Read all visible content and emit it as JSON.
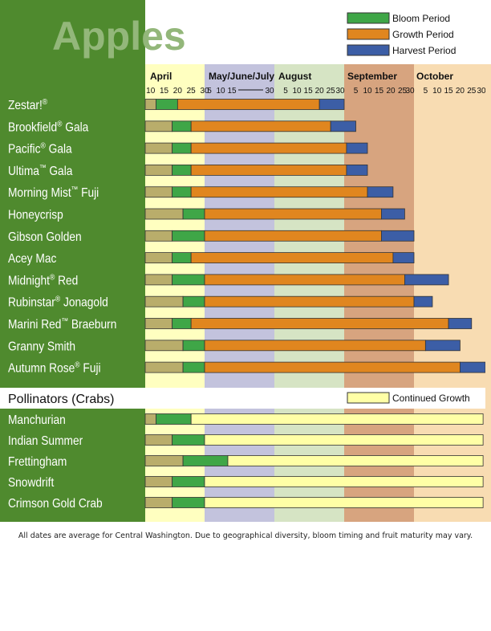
{
  "chart_data": {
    "type": "gantt",
    "title": "Apples",
    "legend": {
      "bloom": "Bloom Period",
      "growth": "Growth Period",
      "harvest": "Harvest Period",
      "continued": "Continued Growth"
    },
    "colors": {
      "bloom": "#3fa647",
      "growth": "#e0861f",
      "harvest": "#3c5ea6",
      "continued": "#ffffa6",
      "pre": "#b9ad6b",
      "label_panel": "#4f8a2e",
      "band_april": "#ffffc0",
      "band_mayjunejuly": "#c3c3dd",
      "band_august": "#d6e4c4",
      "band_september": "#d7a47f",
      "band_october": "#f8dcb2"
    },
    "months": [
      {
        "name": "April",
        "ticks": [
          "10",
          "15",
          "20",
          "25",
          "30"
        ]
      },
      {
        "name": "May/June/July",
        "ticks": [
          "5",
          "10",
          "15",
          "30"
        ]
      },
      {
        "name": "August",
        "ticks": [
          "5",
          "10",
          "15",
          "20",
          "25",
          "30"
        ]
      },
      {
        "name": "September",
        "ticks": [
          "5",
          "10",
          "15",
          "20",
          "25",
          "30"
        ]
      },
      {
        "name": "October",
        "ticks": [
          "5",
          "10",
          "15",
          "20",
          "25",
          "30"
        ]
      }
    ],
    "varieties": [
      {
        "name": "Zestar!",
        "mark": "®",
        "bloom": [
          "Apr 12",
          "Apr 20"
        ],
        "growth": [
          "Apr 20",
          "Aug 20"
        ],
        "harvest": [
          "Aug 20",
          "Aug 31"
        ]
      },
      {
        "name": "Brookfield",
        "mark": "®",
        "suffix": " Gala",
        "bloom": [
          "Apr 18",
          "Apr 25"
        ],
        "growth": [
          "Apr 25",
          "Aug 25"
        ],
        "harvest": [
          "Aug 25",
          "Sep 5"
        ]
      },
      {
        "name": "Pacific",
        "mark": "®",
        "suffix": " Gala",
        "bloom": [
          "Apr 18",
          "Apr 25"
        ],
        "growth": [
          "Apr 25",
          "Sep 1"
        ],
        "harvest": [
          "Sep 1",
          "Sep 10"
        ]
      },
      {
        "name": "Ultima",
        "mark": "™",
        "suffix": " Gala",
        "bloom": [
          "Apr 18",
          "Apr 25"
        ],
        "growth": [
          "Apr 25",
          "Sep 1"
        ],
        "harvest": [
          "Sep 1",
          "Sep 10"
        ]
      },
      {
        "name": "Morning Mist",
        "mark": "™",
        "suffix": " Fuji",
        "bloom": [
          "Apr 18",
          "Apr 25"
        ],
        "growth": [
          "Apr 25",
          "Sep 10"
        ],
        "harvest": [
          "Sep 10",
          "Sep 21"
        ]
      },
      {
        "name": "Honeycrisp",
        "bloom": [
          "Apr 22",
          "Apr 30"
        ],
        "growth": [
          "Apr 30",
          "Sep 16"
        ],
        "harvest": [
          "Sep 16",
          "Sep 26"
        ]
      },
      {
        "name": "Gibson Golden",
        "bloom": [
          "Apr 18",
          "Apr 30"
        ],
        "growth": [
          "Apr 30",
          "Sep 16"
        ],
        "harvest": [
          "Sep 16",
          "Sep 30"
        ]
      },
      {
        "name": "Acey Mac",
        "bloom": [
          "Apr 18",
          "Apr 25"
        ],
        "growth": [
          "Apr 25",
          "Sep 21"
        ],
        "harvest": [
          "Sep 21",
          "Sep 30"
        ]
      },
      {
        "name": "Midnight",
        "mark": "®",
        "suffix": " Red",
        "bloom": [
          "Apr 18",
          "Apr 30"
        ],
        "growth": [
          "Apr 30",
          "Sep 26"
        ],
        "harvest": [
          "Sep 26",
          "Oct 15"
        ]
      },
      {
        "name": "Rubinstar",
        "mark": "®",
        "suffix": " Jonagold",
        "bloom": [
          "Apr 22",
          "Apr 30"
        ],
        "growth": [
          "Apr 30",
          "Sep 30"
        ],
        "harvest": [
          "Sep 30",
          "Oct 8"
        ]
      },
      {
        "name": "Marini Red",
        "mark": "™",
        "suffix": "   Braeburn",
        "bloom": [
          "Apr 18",
          "Apr 25"
        ],
        "growth": [
          "Apr 25",
          "Oct 15"
        ],
        "harvest": [
          "Oct 15",
          "Oct 25"
        ]
      },
      {
        "name": "Granny Smith",
        "bloom": [
          "Apr 22",
          "Apr 30"
        ],
        "growth": [
          "Apr 30",
          "Oct 5"
        ],
        "harvest": [
          "Oct 5",
          "Oct 20"
        ]
      },
      {
        "name": "Autumn Rose",
        "mark": "®",
        "suffix": " Fuji",
        "bloom": [
          "Apr 22",
          "Apr 30"
        ],
        "growth": [
          "Apr 30",
          "Oct 20"
        ],
        "harvest": [
          "Oct 20",
          "Oct 31"
        ]
      }
    ],
    "pollinators_heading": "Pollinators (Crabs)",
    "pollinators": [
      {
        "name": "Manchurian",
        "bloom": [
          "Apr 12",
          "Apr 25"
        ],
        "continued": [
          "Apr 25",
          "Oct 30"
        ]
      },
      {
        "name": "Indian Summer",
        "bloom": [
          "Apr 18",
          "Apr 30"
        ],
        "continued": [
          "Apr 30",
          "Oct 30"
        ]
      },
      {
        "name": "Frettingham",
        "bloom": [
          "Apr 22",
          "May 30"
        ],
        "continued": [
          "May 30",
          "Oct 30"
        ]
      },
      {
        "name": "Snowdrift",
        "bloom": [
          "Apr 18",
          "Apr 30"
        ],
        "continued": [
          "Apr 30",
          "Oct 30"
        ]
      },
      {
        "name": "Crimson Gold Crab",
        "bloom": [
          "Apr 18",
          "Apr 30"
        ],
        "continued": [
          "Apr 30",
          "Oct 30"
        ]
      }
    ]
  },
  "footnote": "All dates are average for Central Washington. Due to geographical diversity, bloom timing and fruit maturity may vary."
}
